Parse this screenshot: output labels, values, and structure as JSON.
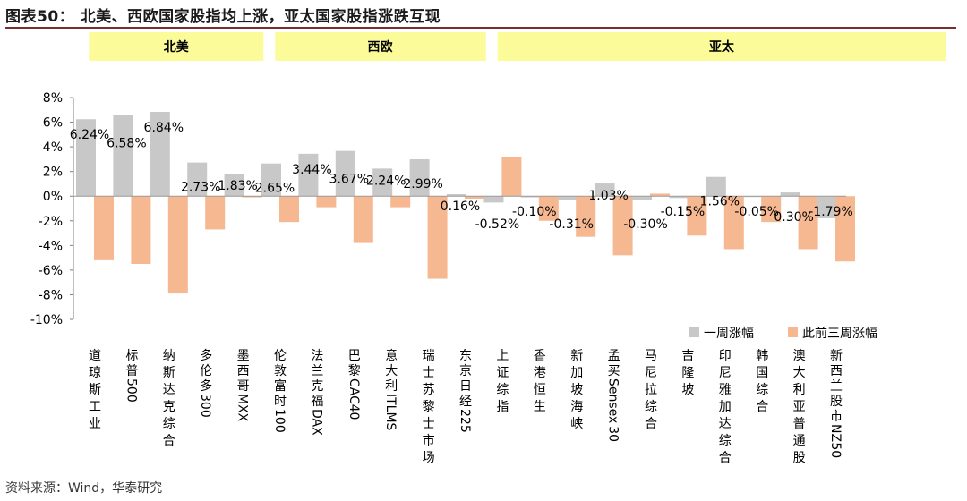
{
  "title": "图表50： 北美、西欧国家股指均上涨，亚太国家股指涨跌互现",
  "source": "资料来源：Wind，华泰研究",
  "colors": {
    "series1": "#c8c8c8",
    "series2": "#f6b891",
    "region_bg": "#fbfb9a",
    "title_rule": "#7a2f2f"
  },
  "chart_data": {
    "type": "bar",
    "ylim": [
      -10,
      8
    ],
    "yticks": [
      "8%",
      "6%",
      "4%",
      "2%",
      "0%",
      "-2%",
      "-4%",
      "-6%",
      "-8%",
      "-10%"
    ],
    "regions": [
      {
        "name": "北美",
        "start": 0,
        "end": 4
      },
      {
        "name": "西欧",
        "start": 5,
        "end": 10
      },
      {
        "name": "亚太",
        "start": 11,
        "end": 20
      }
    ],
    "categories": [
      "道琼斯工业",
      "标普500",
      "纳斯达克综合",
      "多伦多300",
      "墨西哥MXX",
      "伦敦富时100",
      "法兰克福DAX",
      "巴黎CAC40",
      "意大利ITLMS",
      "瑞士苏黎士市场",
      "东京日经225",
      "上证综指",
      "香港恒生",
      "新加坡海峡",
      "孟买Sensex30",
      "马尼拉综合",
      "吉隆坡",
      "印尼雅加达综合",
      "韩国综合",
      "澳大利亚普通股",
      "新西兰股市NZ50"
    ],
    "series": [
      {
        "name": "一周涨幅",
        "values": [
          6.24,
          6.58,
          6.84,
          2.73,
          1.83,
          2.65,
          3.44,
          3.67,
          2.24,
          2.99,
          0.16,
          -0.52,
          -0.1,
          -0.31,
          1.03,
          -0.3,
          -0.15,
          1.56,
          -0.05,
          0.3,
          -1.79
        ],
        "labels": [
          "6.24%",
          "6.58%",
          "6.84%",
          "2.73%",
          "1.83%",
          "2.65%",
          "3.44%",
          "3.67%",
          "2.24%",
          "2.99%",
          "0.16%",
          "-0.52%",
          "-0.10%",
          "-0.31%",
          "1.03%",
          "-0.30%",
          "-0.15%",
          "1.56%",
          "-0.05%",
          "0.30%",
          "-1.79%"
        ]
      },
      {
        "name": "此前三周涨幅",
        "values": [
          -5.2,
          -5.5,
          -7.9,
          -2.7,
          -0.1,
          -2.1,
          -0.9,
          -3.8,
          -0.9,
          -6.7,
          -0.2,
          3.2,
          -2.0,
          -3.3,
          -4.8,
          0.2,
          -3.2,
          -4.3,
          -2.1,
          -4.3,
          -5.3
        ]
      }
    ],
    "legend": [
      "一周涨幅",
      "此前三周涨幅"
    ],
    "legend_position": "bottom-right"
  }
}
